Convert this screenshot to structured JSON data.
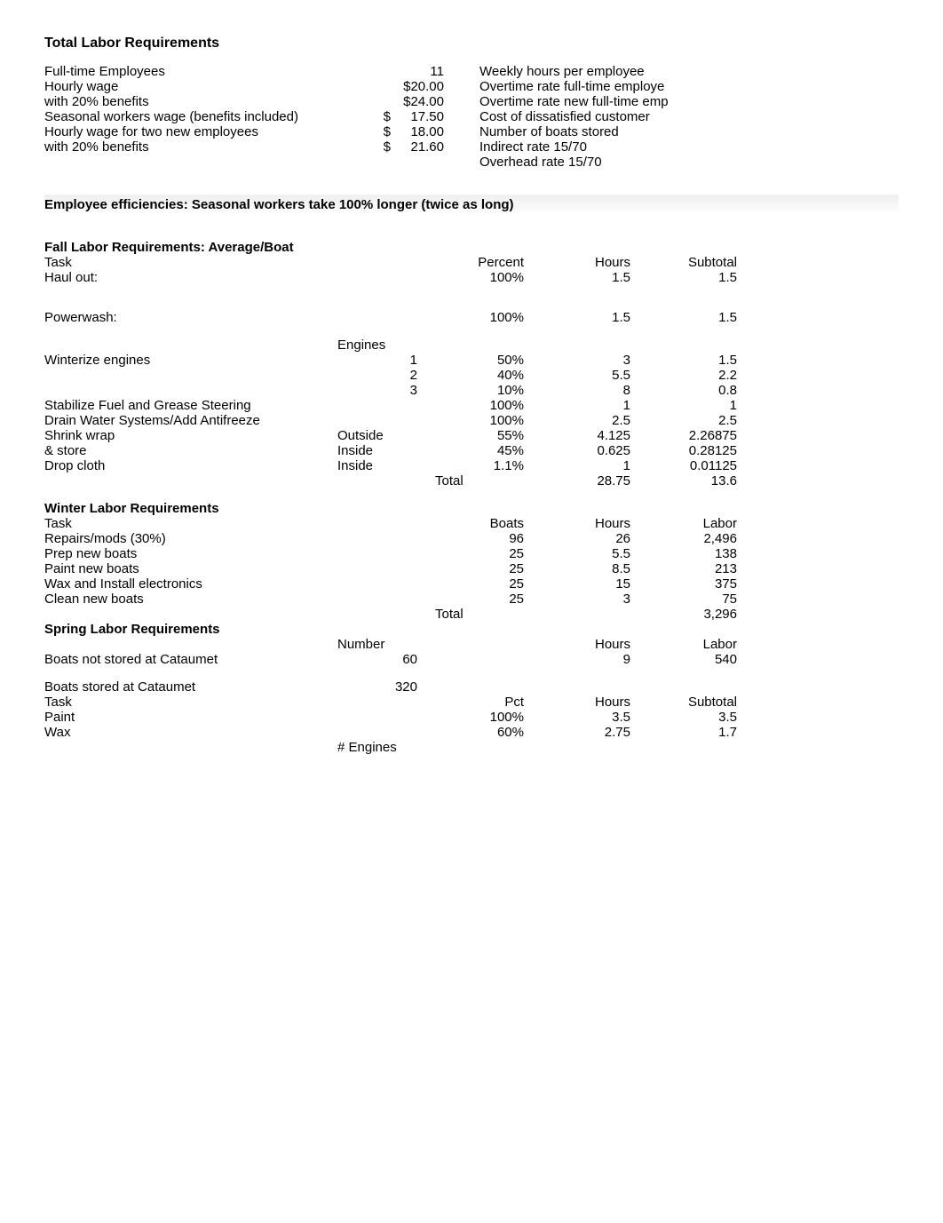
{
  "title": "Total Labor Requirements",
  "top": {
    "rows": [
      {
        "label": "Full-time Employees",
        "val": "11",
        "right": "Weekly hours per employee"
      },
      {
        "label": "Hourly wage",
        "val": "$20.00",
        "right": "Overtime rate full-time employe"
      },
      {
        "label": "with 20% benefits",
        "val": "$24.00",
        "right": "Overtime rate new full-time emp"
      },
      {
        "label": "Seasonal workers wage (benefits included)",
        "val_prefix": "$",
        "val": "17.50",
        "right": "Cost of dissatisfied customer"
      },
      {
        "label": "Hourly wage for two new employees",
        "val_prefix": "$",
        "val": "18.00",
        "right": "Number of boats stored"
      },
      {
        "label": "with 20% benefits",
        "val_prefix": "$",
        "val": "21.60",
        "right": "Indirect rate 15/70"
      },
      {
        "label": "",
        "val": "",
        "right": "Overhead rate 15/70"
      }
    ]
  },
  "efficiency_note": "Employee efficiencies:  Seasonal workers take 100% longer (twice as long)",
  "fall": {
    "title": "Fall Labor Requirements: Average/Boat",
    "header": {
      "task": "Task",
      "pct": "Percent",
      "hrs": "Hours",
      "sub": "Subtotal"
    },
    "rows": [
      {
        "label": "Haul out:",
        "eng": "",
        "pct": "100%",
        "hrs": "1.5",
        "sub": "1.5"
      },
      {
        "spacer": true
      },
      {
        "spacer": true
      },
      {
        "label": "Powerwash:",
        "eng": "",
        "pct": "100%",
        "hrs": "1.5",
        "sub": "1.5"
      },
      {
        "spacer": true
      },
      {
        "label": "",
        "eng_label": "Engines",
        "pct": "",
        "hrs": "",
        "sub": ""
      },
      {
        "label": "Winterize engines",
        "eng": "1",
        "pct": "50%",
        "hrs": "3",
        "sub": "1.5"
      },
      {
        "label": "",
        "eng": "2",
        "pct": "40%",
        "hrs": "5.5",
        "sub": "2.2"
      },
      {
        "label": "",
        "eng": "3",
        "pct": "10%",
        "hrs": "8",
        "sub": "0.8"
      },
      {
        "label": "Stabilize Fuel and Grease Steering",
        "eng": "",
        "pct": "100%",
        "hrs": "1",
        "sub": "1"
      },
      {
        "label": "Drain Water Systems/Add Antifreeze",
        "eng": "",
        "pct": "100%",
        "hrs": "2.5",
        "sub": "2.5"
      },
      {
        "label": "Shrink wrap",
        "eng_text": "Outside",
        "pct": "55%",
        "hrs": "4.125",
        "sub": "2.26875"
      },
      {
        "label": "& store",
        "eng_text": "Inside",
        "pct": "45%",
        "hrs": "0.625",
        "sub": "0.28125"
      },
      {
        "label": "Drop cloth",
        "eng_text": "Inside",
        "pct": "1.1%",
        "hrs": "1",
        "sub": "0.01125"
      },
      {
        "label": "",
        "eng": "",
        "total_label": "Total",
        "hrs": "28.75",
        "sub": "13.6"
      }
    ]
  },
  "winter": {
    "title": "Winter Labor Requirements",
    "header": {
      "task": "Task",
      "boats": "Boats",
      "hrs": "Hours",
      "labor": "Labor"
    },
    "rows": [
      {
        "label": "Repairs/mods (30%)",
        "boats": "96",
        "hrs": "26",
        "labor": "2,496"
      },
      {
        "label": "Prep new boats",
        "boats": "25",
        "hrs": "5.5",
        "labor": "138"
      },
      {
        "label": "Paint new boats",
        "boats": "25",
        "hrs": "8.5",
        "labor": "213"
      },
      {
        "label": "Wax and Install electronics",
        "boats": "25",
        "hrs": "15",
        "labor": "375"
      },
      {
        "label": "Clean new boats",
        "boats": "25",
        "hrs": "3",
        "labor": "75"
      },
      {
        "label": "",
        "total_label": "Total",
        "hrs": "",
        "labor": "3,296"
      }
    ]
  },
  "spring": {
    "title": "Spring Labor Requirements",
    "header": {
      "num": "Number",
      "hrs": "Hours",
      "labor": "Labor"
    },
    "row1": {
      "label": "Boats not stored at Cataumet",
      "num": "60",
      "hrs": "9",
      "labor": "540"
    },
    "row2": {
      "label": "Boats stored at Cataumet",
      "num": "320"
    },
    "header2": {
      "task": "Task",
      "pct": "Pct",
      "hrs": "Hours",
      "sub": "Subtotal"
    },
    "rows": [
      {
        "label": "Paint",
        "pct": "100%",
        "hrs": "3.5",
        "sub": "3.5"
      },
      {
        "label": "Wax",
        "pct": "60%",
        "hrs": "2.75",
        "sub": "1.7"
      }
    ],
    "footer": "# Engines"
  },
  "colors": {
    "text": "#000000",
    "bg": "#ffffff",
    "highlight": "rgba(200,200,200,0.3)"
  },
  "typography": {
    "font_family": "Arial",
    "base_size": 15,
    "title_size": 16
  }
}
